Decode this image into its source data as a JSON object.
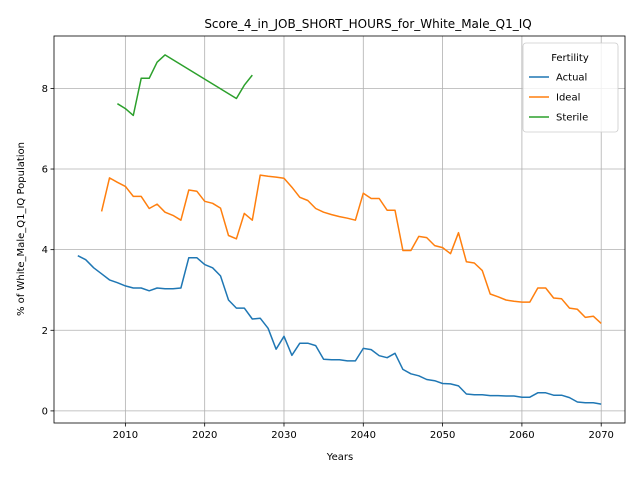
{
  "chart_data": {
    "type": "line",
    "title": "Score_4_in_JOB_SHORT_HOURS_for_White_Male_Q1_IQ",
    "xlabel": "Years",
    "ylabel": "% of White_Male_Q1_IQ Population",
    "xlim": [
      2001,
      2073
    ],
    "ylim": [
      -0.3,
      9.3
    ],
    "xticks": [
      2010,
      2020,
      2030,
      2040,
      2050,
      2060,
      2070
    ],
    "yticks": [
      0,
      2,
      4,
      6,
      8
    ],
    "grid": true,
    "legend": {
      "title": "Fertility",
      "placement": "top-right"
    },
    "series": [
      {
        "name": "Actual",
        "color": "#1f77b4",
        "x": [
          2004,
          2005,
          2006,
          2007,
          2008,
          2009,
          2010,
          2011,
          2012,
          2013,
          2014,
          2015,
          2016,
          2017,
          2018,
          2019,
          2020,
          2021,
          2022,
          2023,
          2024,
          2025,
          2026,
          2027,
          2028,
          2029,
          2030,
          2031,
          2032,
          2033,
          2034,
          2035,
          2036,
          2037,
          2038,
          2039,
          2040,
          2041,
          2042,
          2043,
          2044,
          2045,
          2046,
          2047,
          2048,
          2049,
          2050,
          2051,
          2052,
          2053,
          2054,
          2055,
          2056,
          2057,
          2058,
          2059,
          2060,
          2061,
          2062,
          2063,
          2064,
          2065,
          2066,
          2067,
          2068,
          2069,
          2070
        ],
        "y": [
          3.85,
          3.75,
          3.55,
          3.4,
          3.25,
          3.18,
          3.1,
          3.05,
          3.05,
          2.98,
          3.05,
          3.03,
          3.03,
          3.05,
          3.8,
          3.8,
          3.63,
          3.55,
          3.35,
          2.75,
          2.55,
          2.55,
          2.28,
          2.3,
          2.05,
          1.53,
          1.85,
          1.38,
          1.68,
          1.68,
          1.62,
          1.28,
          1.27,
          1.27,
          1.24,
          1.24,
          1.55,
          1.52,
          1.37,
          1.32,
          1.43,
          1.03,
          0.92,
          0.87,
          0.78,
          0.75,
          0.68,
          0.67,
          0.62,
          0.42,
          0.4,
          0.4,
          0.38,
          0.38,
          0.37,
          0.37,
          0.34,
          0.34,
          0.45,
          0.45,
          0.39,
          0.39,
          0.33,
          0.22,
          0.2,
          0.2,
          0.17
        ]
      },
      {
        "name": "Ideal",
        "color": "#ff7f0e",
        "x": [
          2007,
          2008,
          2009,
          2010,
          2011,
          2012,
          2013,
          2014,
          2015,
          2016,
          2017,
          2018,
          2019,
          2020,
          2021,
          2022,
          2023,
          2024,
          2025,
          2026,
          2027,
          2028,
          2029,
          2030,
          2031,
          2032,
          2033,
          2034,
          2035,
          2036,
          2037,
          2038,
          2039,
          2040,
          2041,
          2042,
          2043,
          2044,
          2045,
          2046,
          2047,
          2048,
          2049,
          2050,
          2051,
          2052,
          2053,
          2054,
          2055,
          2056,
          2057,
          2058,
          2059,
          2060,
          2061,
          2062,
          2063,
          2064,
          2065,
          2066,
          2067,
          2068,
          2069,
          2070
        ],
        "y": [
          4.95,
          5.78,
          5.67,
          5.57,
          5.32,
          5.32,
          5.02,
          5.13,
          4.93,
          4.85,
          4.73,
          5.48,
          5.45,
          5.2,
          5.15,
          5.03,
          4.35,
          4.27,
          4.9,
          4.73,
          5.85,
          5.82,
          5.8,
          5.77,
          5.55,
          5.3,
          5.22,
          5.02,
          4.93,
          4.87,
          4.82,
          4.78,
          4.73,
          5.4,
          5.27,
          5.27,
          4.98,
          4.98,
          3.98,
          3.98,
          4.33,
          4.3,
          4.1,
          4.05,
          3.9,
          4.42,
          3.7,
          3.67,
          3.48,
          2.9,
          2.83,
          2.75,
          2.72,
          2.7,
          2.7,
          3.05,
          3.05,
          2.8,
          2.78,
          2.55,
          2.52,
          2.32,
          2.35,
          2.17
        ]
      },
      {
        "name": "Sterile",
        "color": "#2ca02c",
        "x": [
          2009,
          2010,
          2011,
          2012,
          2013,
          2014,
          2015,
          2024,
          2025,
          2026
        ],
        "y": [
          7.62,
          7.5,
          7.33,
          8.25,
          8.25,
          8.65,
          8.83,
          7.75,
          8.08,
          8.33
        ]
      }
    ]
  }
}
